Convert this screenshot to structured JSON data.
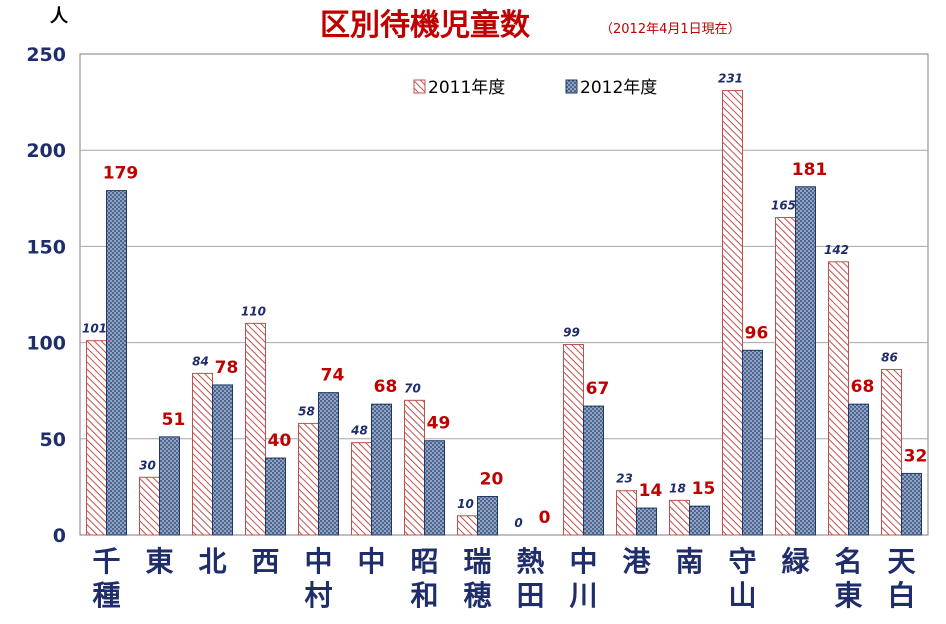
{
  "chart_data": {
    "type": "bar",
    "title": "区別待機児童数",
    "subtitle": "（2012年4月1日現在）",
    "ylabel": "人",
    "ylim": [
      0,
      250
    ],
    "yticks": [
      0,
      50,
      100,
      150,
      200,
      250
    ],
    "grid": true,
    "legend_position": "top-center",
    "categories": [
      "千種",
      "東",
      "北",
      "西",
      "中村",
      "中",
      "昭和",
      "瑞穂",
      "熱田",
      "中川",
      "港",
      "南",
      "守山",
      "緑",
      "名東",
      "天白"
    ],
    "series": [
      {
        "name": "2011年度",
        "values": [
          101,
          30,
          84,
          110,
          58,
          48,
          70,
          10,
          0,
          99,
          23,
          18,
          231,
          165,
          142,
          86
        ]
      },
      {
        "name": "2012年度",
        "values": [
          179,
          51,
          78,
          40,
          74,
          68,
          49,
          20,
          0,
          67,
          14,
          15,
          96,
          181,
          68,
          32
        ]
      }
    ]
  },
  "colors": {
    "title": "#c00000",
    "label_2012": "#c00000",
    "label_2011": "#1f2d6b",
    "axis_text": "#1f2d6b",
    "hatch_2011": "#c0504d",
    "hatch_2012": "#1f3864"
  }
}
